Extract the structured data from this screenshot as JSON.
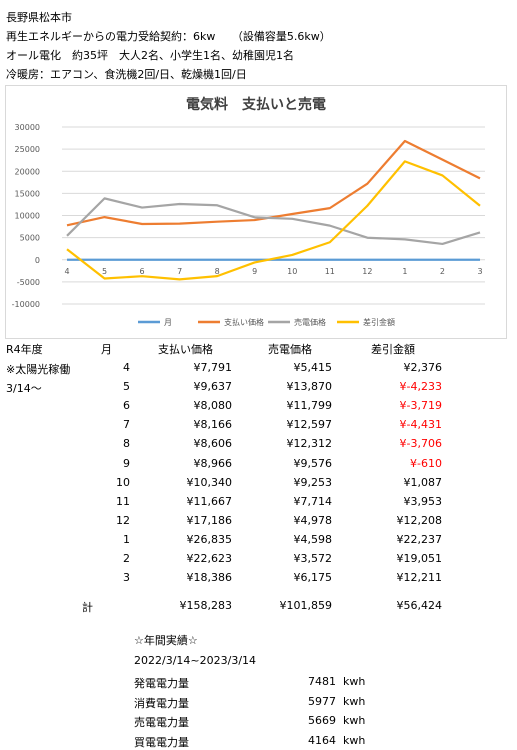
{
  "info": {
    "line1": "長野県松本市",
    "line2": "再生エネルギーからの電力受給契約：6kw　　（設備容量5.6kw）",
    "line3": "オール電化　約35坪　大人2名、小学生1名、幼稚園児1名",
    "line4": "冷暖房：エアコン、食洗機2回/日、乾燥機1回/日"
  },
  "chart_data": {
    "type": "line",
    "title": "電気料　支払いと売電",
    "categories": [
      "4",
      "5",
      "6",
      "7",
      "8",
      "9",
      "10",
      "11",
      "12",
      "1",
      "2",
      "3"
    ],
    "ylim": [
      -10000,
      30000
    ],
    "yticks": [
      -10000,
      -5000,
      0,
      5000,
      10000,
      15000,
      20000,
      25000,
      30000
    ],
    "grid": true,
    "legend_position": "bottom",
    "series": [
      {
        "name": "月",
        "color": "#5b9bd5",
        "values": [
          0,
          0,
          0,
          0,
          0,
          0,
          0,
          0,
          0,
          0,
          0,
          0
        ]
      },
      {
        "name": "支払い価格",
        "color": "#ed7d31",
        "values": [
          7791,
          9637,
          8080,
          8166,
          8606,
          8966,
          10340,
          11667,
          17186,
          26835,
          22623,
          18386
        ]
      },
      {
        "name": "売電価格",
        "color": "#a5a5a5",
        "values": [
          5415,
          13870,
          11799,
          12597,
          12312,
          9576,
          9253,
          7714,
          4978,
          4598,
          3572,
          6175
        ]
      },
      {
        "name": "差引金額",
        "color": "#ffc000",
        "values": [
          2376,
          -4233,
          -3719,
          -4431,
          -3706,
          -610,
          1087,
          3953,
          12208,
          22237,
          19051,
          12211
        ]
      }
    ]
  },
  "table": {
    "year_label": "R4年度",
    "note1": "※太陽光稼働",
    "note2": "3/14～",
    "headers": {
      "month": "月",
      "pay": "支払い価格",
      "sell": "売電価格",
      "diff": "差引金額"
    },
    "rows": [
      {
        "month": "4",
        "pay": "¥7,791",
        "sell": "¥5,415",
        "diff": "¥2,376",
        "neg": false
      },
      {
        "month": "5",
        "pay": "¥9,637",
        "sell": "¥13,870",
        "diff": "¥-4,233",
        "neg": true
      },
      {
        "month": "6",
        "pay": "¥8,080",
        "sell": "¥11,799",
        "diff": "¥-3,719",
        "neg": true
      },
      {
        "month": "7",
        "pay": "¥8,166",
        "sell": "¥12,597",
        "diff": "¥-4,431",
        "neg": true
      },
      {
        "month": "8",
        "pay": "¥8,606",
        "sell": "¥12,312",
        "diff": "¥-3,706",
        "neg": true
      },
      {
        "month": "9",
        "pay": "¥8,966",
        "sell": "¥9,576",
        "diff": "¥-610",
        "neg": true
      },
      {
        "month": "10",
        "pay": "¥10,340",
        "sell": "¥9,253",
        "diff": "¥1,087",
        "neg": false
      },
      {
        "month": "11",
        "pay": "¥11,667",
        "sell": "¥7,714",
        "diff": "¥3,953",
        "neg": false
      },
      {
        "month": "12",
        "pay": "¥17,186",
        "sell": "¥4,978",
        "diff": "¥12,208",
        "neg": false
      },
      {
        "month": "1",
        "pay": "¥26,835",
        "sell": "¥4,598",
        "diff": "¥22,237",
        "neg": false
      },
      {
        "month": "2",
        "pay": "¥22,623",
        "sell": "¥3,572",
        "diff": "¥19,051",
        "neg": false
      },
      {
        "month": "3",
        "pay": "¥18,386",
        "sell": "¥6,175",
        "diff": "¥12,211",
        "neg": false
      }
    ],
    "total": {
      "label": "計",
      "pay": "¥158,283",
      "sell": "¥101,859",
      "diff": "¥56,424"
    }
  },
  "summary": {
    "title": "☆年間実績☆",
    "period": "2022/3/14~2023/3/14",
    "rows": [
      {
        "label": "発電電力量",
        "value": "7481",
        "unit": "kwh"
      },
      {
        "label": "消費電力量",
        "value": "5977",
        "unit": "kwh"
      },
      {
        "label": "売電電力量",
        "value": "5669",
        "unit": "kwh"
      },
      {
        "label": "買電電力量",
        "value": "4164",
        "unit": "kwh"
      }
    ]
  }
}
